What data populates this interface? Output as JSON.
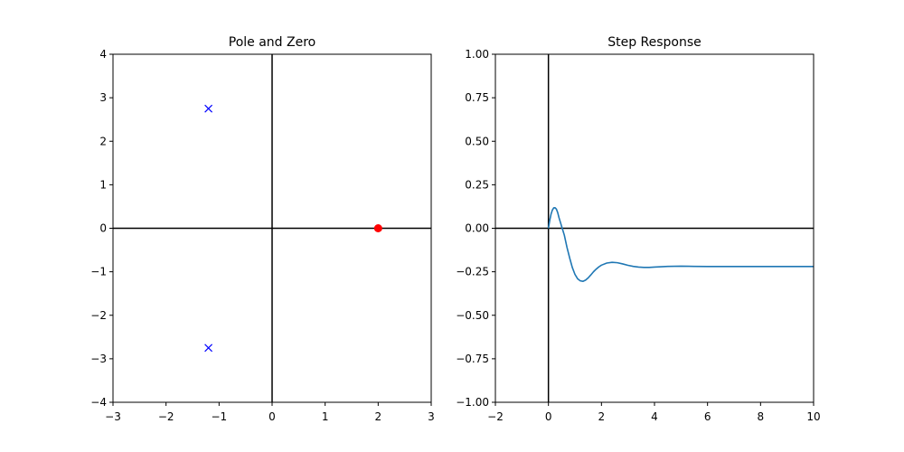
{
  "colors": {
    "pole": "#0000ff",
    "zero": "#ff0000",
    "response": "#1f77b4",
    "axis_line": "#000000"
  },
  "chart_data": [
    {
      "type": "scatter",
      "title": "Pole and Zero",
      "xlabel": "",
      "ylabel": "",
      "xlim": [
        -3,
        3
      ],
      "ylim": [
        -4,
        4
      ],
      "x_ticks": [
        -3,
        -2,
        -1,
        0,
        1,
        2,
        3
      ],
      "y_ticks": [
        -4,
        -3,
        -2,
        -1,
        0,
        1,
        2,
        3,
        4
      ],
      "x_tick_labels": [
        "−3",
        "−2",
        "−1",
        "0",
        "1",
        "2",
        "3"
      ],
      "y_tick_labels": [
        "−4",
        "−3",
        "−2",
        "−1",
        "0",
        "1",
        "2",
        "3",
        "4"
      ],
      "grid": false,
      "reference_lines": {
        "x": 0,
        "y": 0
      },
      "series": [
        {
          "marker": "x",
          "color": "#0000ff",
          "points": [
            [
              -1.2,
              2.75
            ],
            [
              -1.2,
              -2.75
            ]
          ]
        },
        {
          "marker": "o",
          "color": "#ff0000",
          "points": [
            [
              2.0,
              0.0
            ]
          ]
        }
      ]
    },
    {
      "type": "line",
      "title": "Step Response",
      "xlabel": "",
      "ylabel": "",
      "xlim": [
        -2,
        10
      ],
      "ylim": [
        -1.0,
        1.0
      ],
      "x_ticks": [
        -2,
        0,
        2,
        4,
        6,
        8,
        10
      ],
      "y_ticks": [
        -1.0,
        -0.75,
        -0.5,
        -0.25,
        0.0,
        0.25,
        0.5,
        0.75,
        1.0
      ],
      "x_tick_labels": [
        "−2",
        "0",
        "2",
        "4",
        "6",
        "8",
        "10"
      ],
      "y_tick_labels": [
        "−1.00",
        "−0.75",
        "−0.50",
        "−0.25",
        "0.00",
        "0.25",
        "0.50",
        "0.75",
        "1.00"
      ],
      "grid": false,
      "reference_lines": {
        "x": 0,
        "y": 0
      },
      "series": [
        {
          "color": "#1f77b4",
          "x": [
            0.0,
            0.05,
            0.1,
            0.15,
            0.2,
            0.25,
            0.3,
            0.35,
            0.4,
            0.5,
            0.6,
            0.7,
            0.8,
            0.9,
            1.0,
            1.1,
            1.2,
            1.3,
            1.4,
            1.5,
            1.6,
            1.7,
            1.8,
            1.9,
            2.0,
            2.2,
            2.4,
            2.6,
            2.8,
            3.0,
            3.2,
            3.4,
            3.6,
            3.8,
            4.0,
            4.5,
            5.0,
            5.5,
            6.0,
            7.0,
            8.0,
            9.0,
            10.0
          ],
          "y": [
            0.0,
            0.045,
            0.082,
            0.105,
            0.117,
            0.118,
            0.11,
            0.09,
            0.06,
            0.01,
            -0.04,
            -0.11,
            -0.17,
            -0.225,
            -0.265,
            -0.29,
            -0.302,
            -0.305,
            -0.298,
            -0.285,
            -0.268,
            -0.25,
            -0.235,
            -0.222,
            -0.212,
            -0.2,
            -0.196,
            -0.198,
            -0.205,
            -0.213,
            -0.219,
            -0.223,
            -0.225,
            -0.225,
            -0.223,
            -0.219,
            -0.218,
            -0.219,
            -0.22,
            -0.22,
            -0.22,
            -0.22,
            -0.22
          ]
        }
      ]
    }
  ],
  "panels": [
    {
      "title": "Pole and Zero"
    },
    {
      "title": "Step Response"
    }
  ]
}
